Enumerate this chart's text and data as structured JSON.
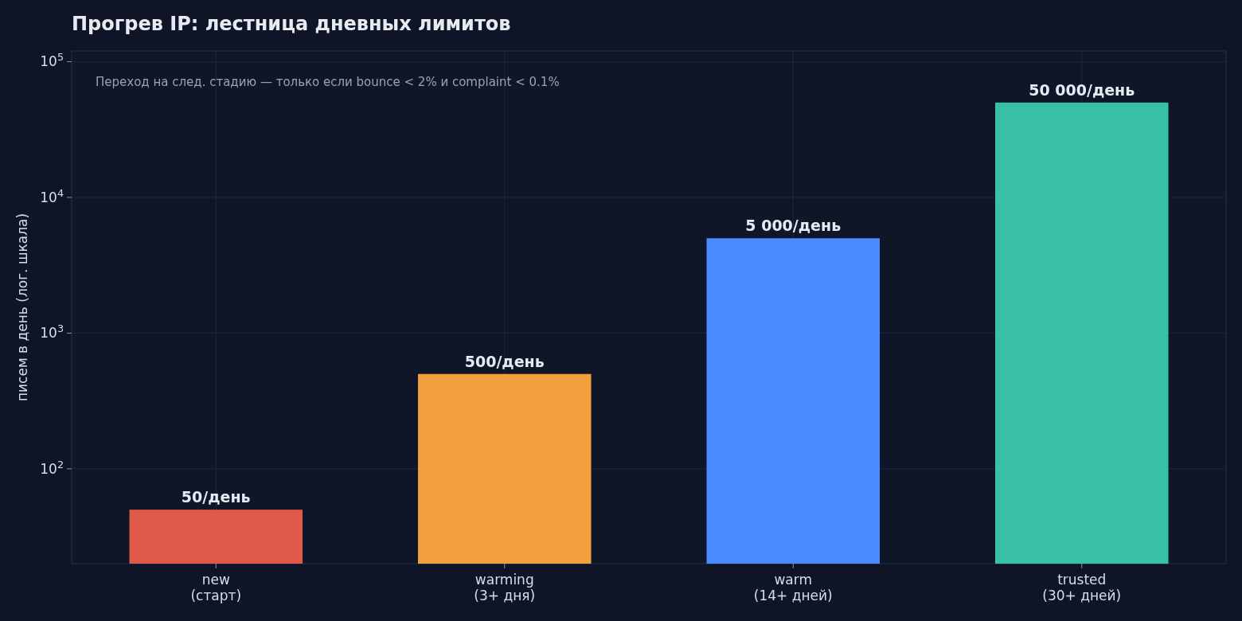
{
  "chart_data": {
    "type": "bar",
    "title": "Прогрев IP: лестница дневных лимитов",
    "ylabel": "писем в день (лог. шкала)",
    "categories": [
      "new\n(старт)",
      "warming\n(3+ дня)",
      "warm\n(14+ дней)",
      "trusted\n(30+ дней)"
    ],
    "values": [
      50,
      500,
      5000,
      50000
    ],
    "colors": [
      "#e05a4a",
      "#f2a03f",
      "#4a8cff",
      "#38c1a6"
    ],
    "value_labels": [
      "50/день",
      "500/день",
      "5 000/день",
      "50 000/день"
    ],
    "log": true,
    "ylim": [
      20,
      120000
    ],
    "yticks": [
      {
        "value": 100,
        "label": "10$^{2}$"
      },
      {
        "value": 1000,
        "label": "10$^{3}$"
      },
      {
        "value": 10000,
        "label": "10$^{4}$"
      },
      {
        "value": 100000,
        "label": "10$^{5}$"
      }
    ],
    "grid": true,
    "annotations": [
      "Переход на след. стадию — только если bounce < 2% и complaint < 0.1%"
    ]
  }
}
